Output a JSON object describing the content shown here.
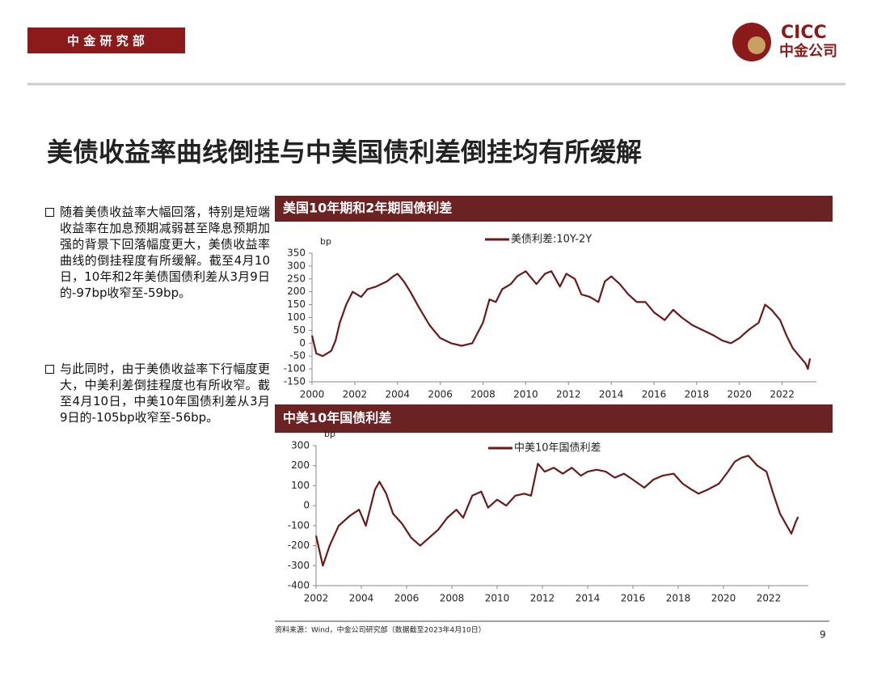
{
  "header": {
    "department": "中 金 研 究 部",
    "logo_en": "CICC",
    "logo_cn": "中金公司"
  },
  "title": "美债收益率曲线倒挂与中美国债利差倒挂均有所缓解",
  "bullets": [
    "随着美债收益率大幅回落，特别是短端收益率在加息预期减弱甚至降息预期加强的背景下回落幅度更大，美债收益率曲线的倒挂程度有所缓解。截至4月10日，10年和2年美债国债利差从3月9日的-97bp收窄至-59bp。",
    "与此同时，由于美债收益率下行幅度更大，中美利差倒挂程度也有所收窄。截至4月10日，中美10年国债利差从3月9日的-105bp收窄至-56bp。"
  ],
  "chart_data": [
    {
      "type": "line",
      "title": "美国10年期和2年期国债利差",
      "y_label": "bp",
      "x": [
        2000.0,
        2000.2,
        2000.5,
        2000.9,
        2001.1,
        2001.3,
        2001.6,
        2001.9,
        2002.3,
        2002.6,
        2003.0,
        2003.5,
        2003.8,
        2004.0,
        2004.3,
        2004.6,
        2005.0,
        2005.5,
        2006.0,
        2006.5,
        2007.0,
        2007.5,
        2008.0,
        2008.3,
        2008.6,
        2008.9,
        2009.3,
        2009.6,
        2010.0,
        2010.5,
        2010.9,
        2011.2,
        2011.6,
        2011.9,
        2012.3,
        2012.6,
        2013.0,
        2013.4,
        2013.7,
        2014.0,
        2014.4,
        2014.8,
        2015.2,
        2015.6,
        2016.0,
        2016.5,
        2016.9,
        2017.3,
        2017.8,
        2018.3,
        2018.8,
        2019.2,
        2019.6,
        2020.0,
        2020.4,
        2020.9,
        2021.2,
        2021.5,
        2021.9,
        2022.2,
        2022.5,
        2022.9,
        2023.1,
        2023.2,
        2023.3
      ],
      "series": [
        {
          "name": "美债利差:10Y-2Y",
          "color": "#6b1a1a",
          "values": [
            30,
            -40,
            -50,
            -30,
            10,
            80,
            150,
            200,
            180,
            210,
            220,
            240,
            260,
            270,
            240,
            200,
            140,
            70,
            20,
            0,
            -10,
            0,
            80,
            170,
            160,
            210,
            230,
            260,
            280,
            230,
            270,
            280,
            220,
            270,
            250,
            190,
            180,
            160,
            240,
            260,
            230,
            190,
            160,
            160,
            120,
            90,
            130,
            100,
            70,
            50,
            30,
            10,
            0,
            20,
            50,
            80,
            150,
            130,
            90,
            30,
            -20,
            -60,
            -80,
            -100,
            -59
          ]
        }
      ],
      "xlim": [
        2000,
        2023.6
      ],
      "xticks": [
        2000,
        2002,
        2004,
        2006,
        2008,
        2010,
        2012,
        2014,
        2016,
        2018,
        2020,
        2022
      ],
      "ylim": [
        -150,
        350
      ],
      "yticks": [
        -150,
        -100,
        -50,
        0,
        50,
        100,
        150,
        200,
        250,
        300,
        350
      ]
    },
    {
      "type": "line",
      "title": "中美10年国债利差",
      "y_label": "bp",
      "x": [
        2002.0,
        2002.3,
        2002.6,
        2003.0,
        2003.5,
        2003.9,
        2004.2,
        2004.6,
        2004.8,
        2005.1,
        2005.4,
        2005.8,
        2006.2,
        2006.6,
        2007.0,
        2007.4,
        2007.8,
        2008.2,
        2008.5,
        2008.9,
        2009.3,
        2009.6,
        2010.0,
        2010.4,
        2010.8,
        2011.2,
        2011.5,
        2011.8,
        2012.1,
        2012.5,
        2012.9,
        2013.3,
        2013.7,
        2014.0,
        2014.4,
        2014.8,
        2015.2,
        2015.6,
        2016.0,
        2016.5,
        2016.9,
        2017.3,
        2017.8,
        2018.2,
        2018.6,
        2018.9,
        2019.3,
        2019.8,
        2020.2,
        2020.5,
        2020.8,
        2021.1,
        2021.5,
        2021.9,
        2022.2,
        2022.5,
        2022.8,
        2023.0,
        2023.2,
        2023.3
      ],
      "series": [
        {
          "name": "中美10年国债利差",
          "color": "#6b1a1a",
          "values": [
            -150,
            -300,
            -200,
            -100,
            -50,
            -20,
            -100,
            80,
            120,
            60,
            -40,
            -90,
            -160,
            -200,
            -160,
            -120,
            -60,
            -20,
            -60,
            50,
            70,
            -10,
            30,
            0,
            50,
            60,
            50,
            210,
            170,
            190,
            160,
            190,
            150,
            170,
            180,
            170,
            140,
            160,
            130,
            90,
            130,
            150,
            160,
            110,
            80,
            60,
            80,
            110,
            170,
            220,
            240,
            250,
            200,
            170,
            60,
            -40,
            -100,
            -140,
            -80,
            -56
          ]
        }
      ],
      "xlim": [
        2002,
        2023.75
      ],
      "xticks": [
        2002,
        2004,
        2006,
        2008,
        2010,
        2012,
        2014,
        2016,
        2018,
        2020,
        2022
      ],
      "ylim": [
        -400,
        300
      ],
      "yticks": [
        -400,
        -300,
        -200,
        -100,
        0,
        100,
        200,
        300
      ]
    }
  ],
  "source": "资料来源：Wind，中金公司研究部（数据截至2023年4月10日）",
  "page_number": 9
}
